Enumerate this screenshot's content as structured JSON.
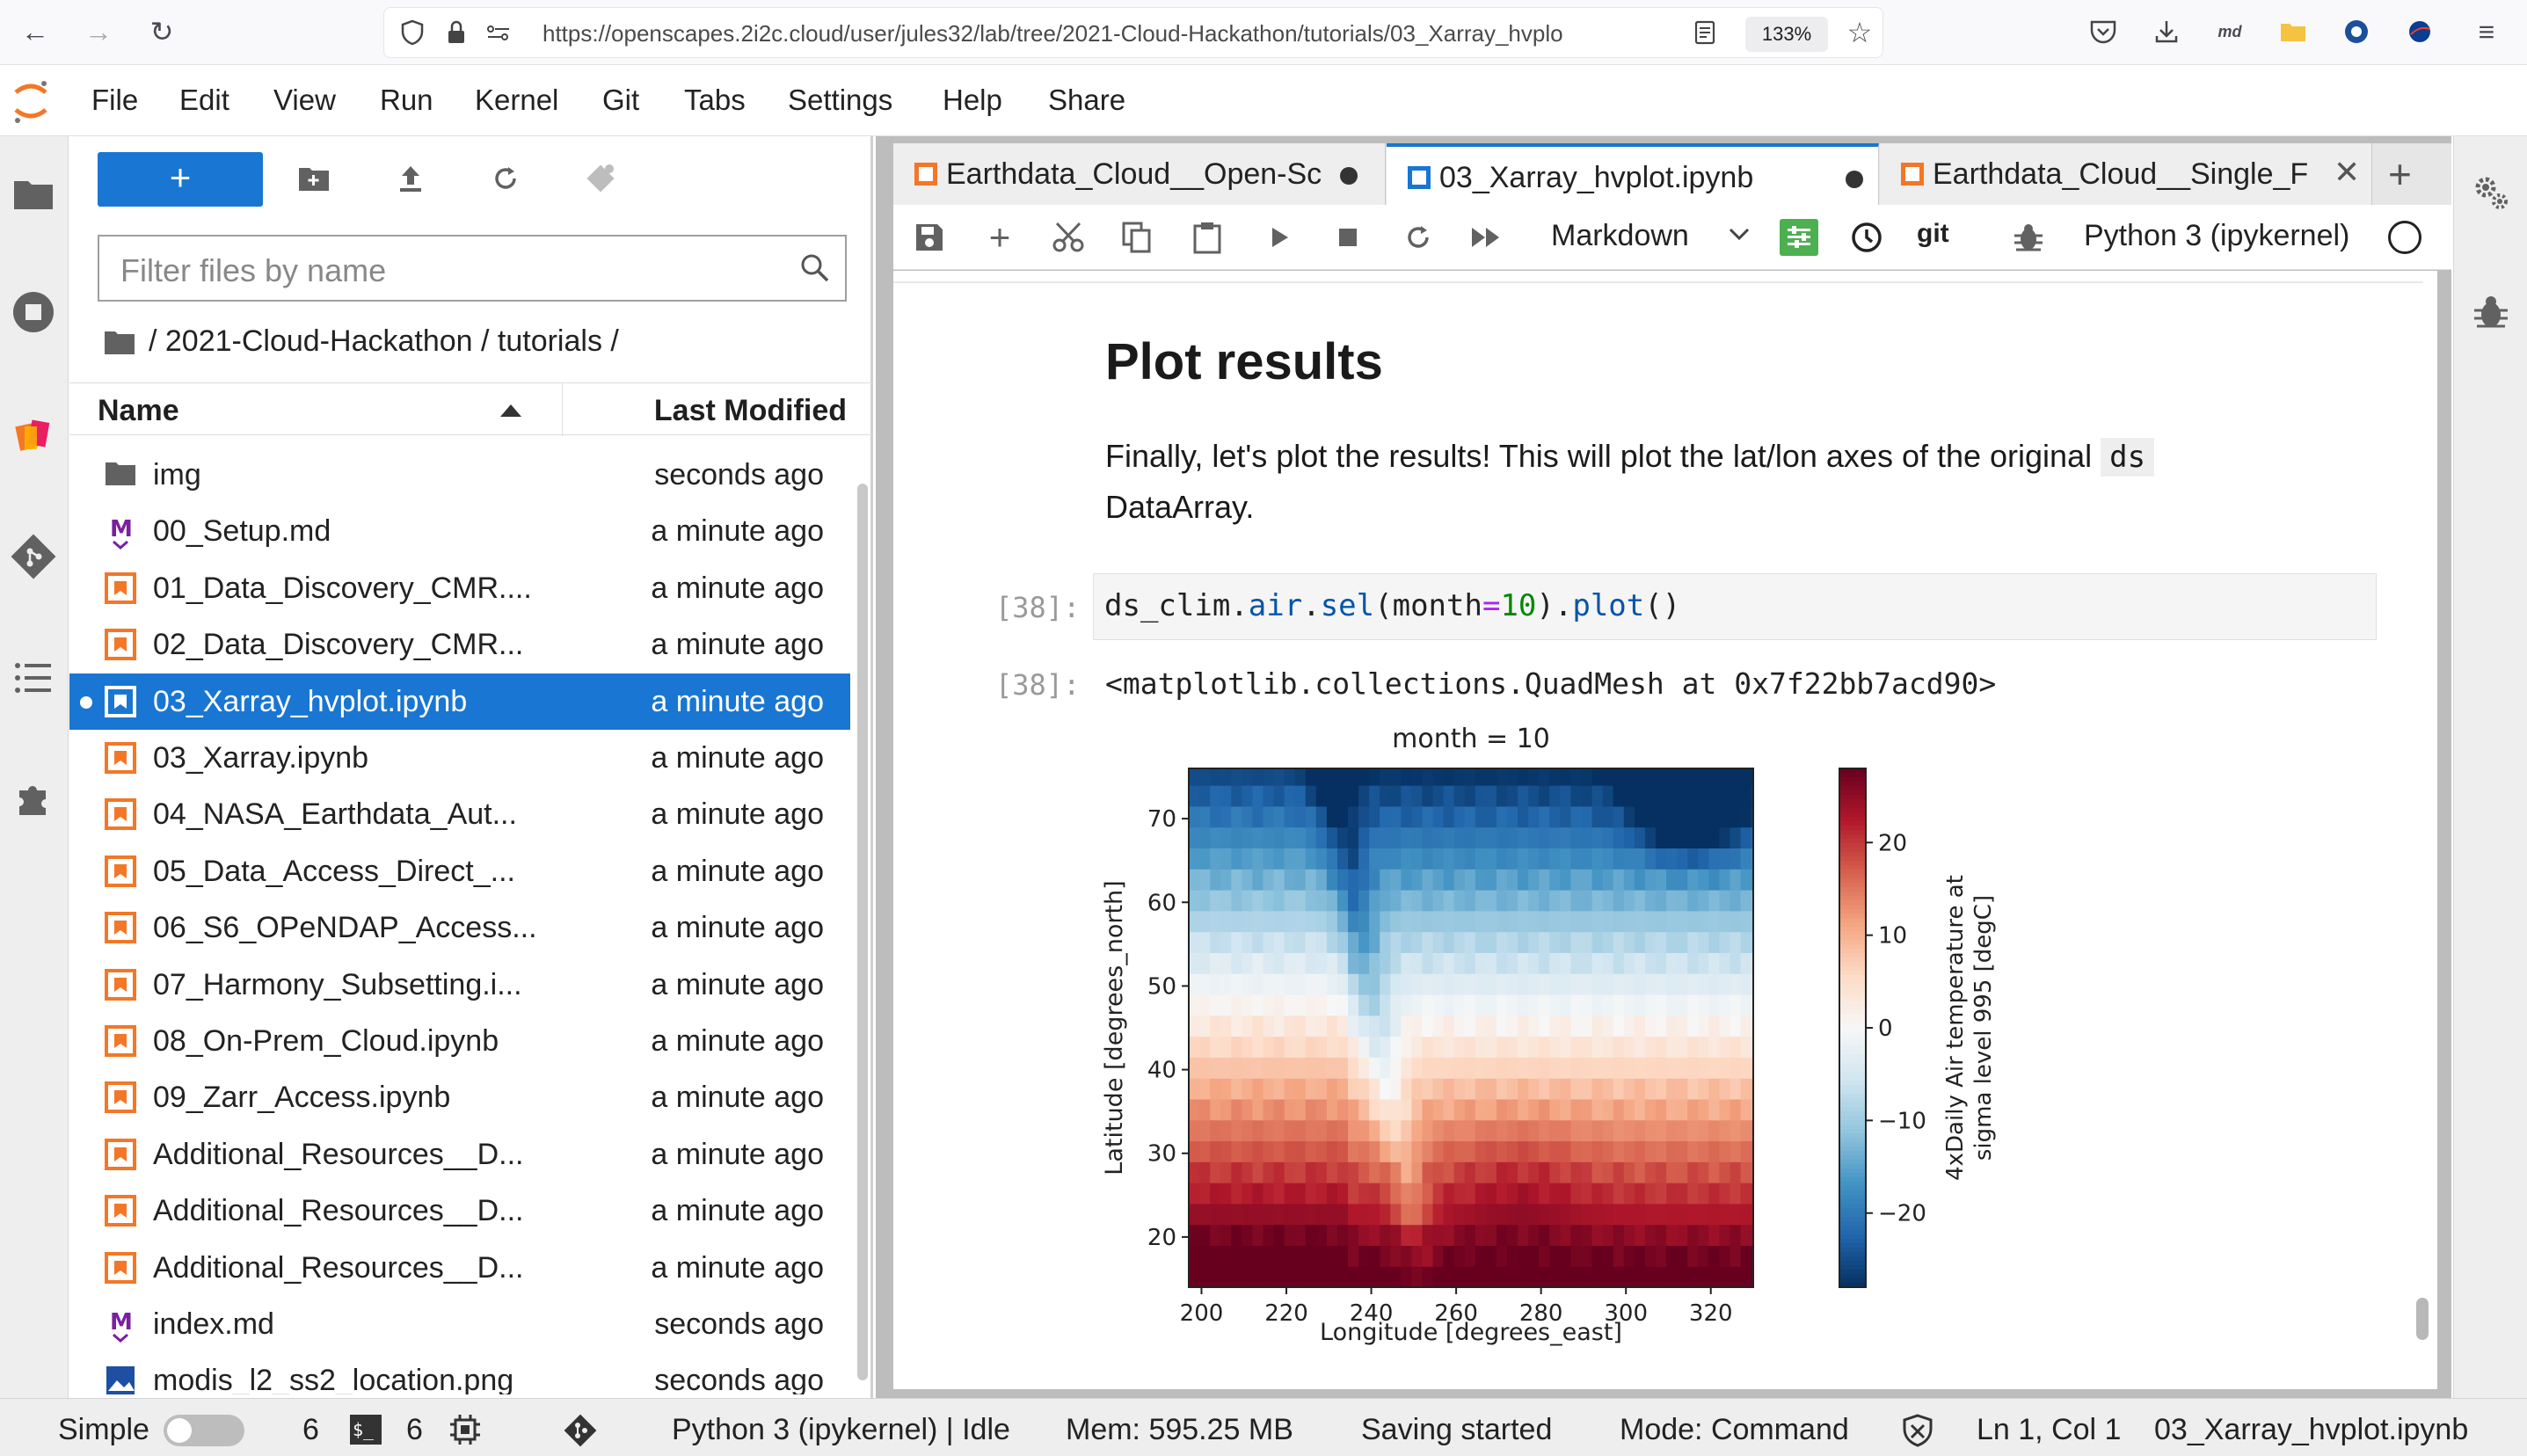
{
  "browser": {
    "url": "https://openscapes.2i2c.cloud/user/jules32/lab/tree/2021-Cloud-Hackathon/tutorials/03_Xarray_hvplo",
    "zoom": "133%"
  },
  "menu": [
    "File",
    "Edit",
    "View",
    "Run",
    "Kernel",
    "Git",
    "Tabs",
    "Settings",
    "Help",
    "Share"
  ],
  "filebrowser": {
    "new_label": "+",
    "filter_placeholder": "Filter files by name",
    "breadcrumb": "/ 2021-Cloud-Hackathon / tutorials /",
    "col_name": "Name",
    "col_modified": "Last Modified",
    "files": [
      {
        "name": "img",
        "modified": "seconds ago",
        "type": "folder"
      },
      {
        "name": "00_Setup.md",
        "modified": "a minute ago",
        "type": "md"
      },
      {
        "name": "01_Data_Discovery_CMR....",
        "modified": "a minute ago",
        "type": "nb"
      },
      {
        "name": "02_Data_Discovery_CMR...",
        "modified": "a minute ago",
        "type": "nb"
      },
      {
        "name": "03_Xarray_hvplot.ipynb",
        "modified": "a minute ago",
        "type": "nb",
        "selected": true
      },
      {
        "name": "03_Xarray.ipynb",
        "modified": "a minute ago",
        "type": "nb"
      },
      {
        "name": "04_NASA_Earthdata_Aut...",
        "modified": "a minute ago",
        "type": "nb"
      },
      {
        "name": "05_Data_Access_Direct_...",
        "modified": "a minute ago",
        "type": "nb"
      },
      {
        "name": "06_S6_OPeNDAP_Access...",
        "modified": "a minute ago",
        "type": "nb"
      },
      {
        "name": "07_Harmony_Subsetting.i...",
        "modified": "a minute ago",
        "type": "nb"
      },
      {
        "name": "08_On-Prem_Cloud.ipynb",
        "modified": "a minute ago",
        "type": "nb"
      },
      {
        "name": "09_Zarr_Access.ipynb",
        "modified": "a minute ago",
        "type": "nb"
      },
      {
        "name": "Additional_Resources__D...",
        "modified": "a minute ago",
        "type": "nb"
      },
      {
        "name": "Additional_Resources__D...",
        "modified": "a minute ago",
        "type": "nb"
      },
      {
        "name": "Additional_Resources__D...",
        "modified": "a minute ago",
        "type": "nb"
      },
      {
        "name": "index.md",
        "modified": "seconds ago",
        "type": "md"
      },
      {
        "name": "modis_l2_ss2_location.png",
        "modified": "seconds ago",
        "type": "img"
      }
    ]
  },
  "tabs": [
    {
      "label": "Earthdata_Cloud__Open-Sc",
      "dirty": true
    },
    {
      "label": "03_Xarray_hvplot.ipynb",
      "dirty": true,
      "active": true
    },
    {
      "label": "Earthdata_Cloud__Single_F",
      "dirty": false
    }
  ],
  "nbtoolbar": {
    "cell_type": "Markdown",
    "git_label": "git",
    "kernel": "Python 3 (ipykernel)"
  },
  "notebook": {
    "heading": "Plot results",
    "para_line1": "Finally, let's plot the results! This will plot the lat/lon axes of the original",
    "para_code": "ds",
    "para_line2": "DataArray.",
    "in_prompt": "[38]:",
    "out_prompt": "[38]:",
    "code": {
      "obj": "ds_clim",
      "attr1": "air",
      "fn1": "sel",
      "arg": "month",
      "val": "10",
      "fn2": "plot"
    },
    "output_text": "<matplotlib.collections.QuadMesh at 0x7f22bb7acd90>"
  },
  "chart_data": {
    "type": "heatmap",
    "title": "month = 10",
    "xlabel": "Longitude [degrees_east]",
    "ylabel": "Latitude [degrees_north]",
    "xticks": [
      200,
      220,
      240,
      260,
      280,
      300,
      320
    ],
    "yticks": [
      20,
      30,
      40,
      50,
      60,
      70
    ],
    "xlim": [
      197,
      330
    ],
    "ylim": [
      14,
      76
    ],
    "colorbar_label_line1": "4xDaily Air temperature at",
    "colorbar_label_line2": "sigma level 995 [degC]",
    "colorbar_ticks": [
      20,
      10,
      0,
      -10,
      -20
    ],
    "colorbar_ticklabels": [
      "20",
      "10",
      "0",
      "−10",
      "−20"
    ],
    "clim": [
      -28,
      28
    ],
    "colormap": "RdBu_r",
    "grid": false
  },
  "status": {
    "mode_label": "Simple",
    "terminals": "6",
    "kernels": "6",
    "kernel_status": "Python 3 (ipykernel) | Idle",
    "mem": "Mem: 595.25 MB",
    "saving": "Saving started",
    "mode": "Mode: Command",
    "position": "Ln 1, Col 1",
    "filename": "03_Xarray_hvplot.ipynb"
  }
}
